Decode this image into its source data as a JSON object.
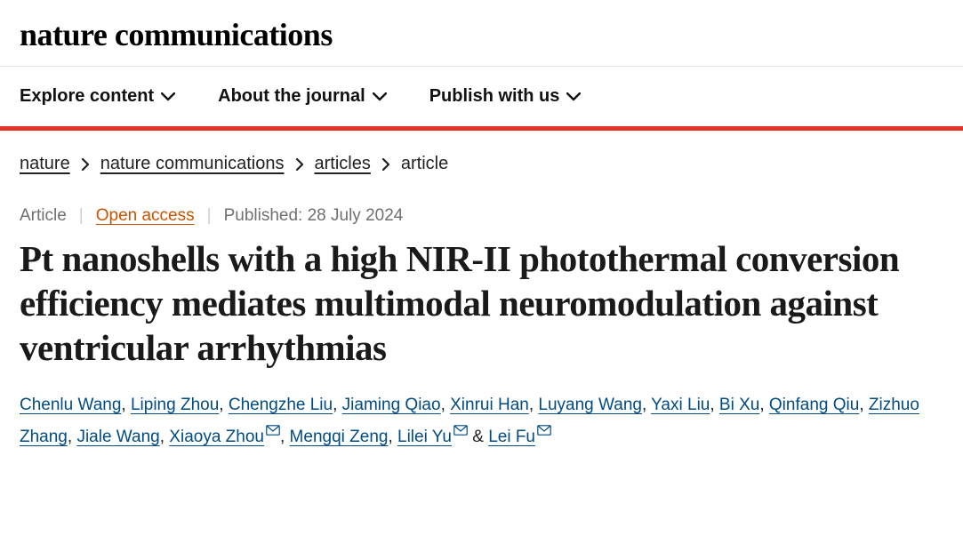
{
  "logo": "nature communications",
  "nav": {
    "items": [
      {
        "label": "Explore content"
      },
      {
        "label": "About the journal"
      },
      {
        "label": "Publish with us"
      }
    ]
  },
  "breadcrumb": {
    "items": [
      {
        "label": "nature",
        "link": true
      },
      {
        "label": "nature communications",
        "link": true
      },
      {
        "label": "articles",
        "link": true
      },
      {
        "label": "article",
        "link": false
      }
    ]
  },
  "meta": {
    "type": "Article",
    "access": "Open access",
    "published_label": "Published:",
    "published_date": "28 July 2024"
  },
  "title": "Pt nanoshells with a high NIR-II photothermal conversion efficiency mediates multimodal neuromodulation against ventricular arrhythmias",
  "authors": [
    {
      "name": "Chenlu Wang",
      "mail": false
    },
    {
      "name": "Liping Zhou",
      "mail": false
    },
    {
      "name": "Chengzhe Liu",
      "mail": false
    },
    {
      "name": "Jiaming Qiao",
      "mail": false
    },
    {
      "name": "Xinrui Han",
      "mail": false
    },
    {
      "name": "Luyang Wang",
      "mail": false
    },
    {
      "name": "Yaxi Liu",
      "mail": false
    },
    {
      "name": "Bi Xu",
      "mail": false
    },
    {
      "name": "Qinfang Qiu",
      "mail": false
    },
    {
      "name": "Zizhuo Zhang",
      "mail": false
    },
    {
      "name": "Jiale Wang",
      "mail": false
    },
    {
      "name": "Xiaoya Zhou",
      "mail": true
    },
    {
      "name": "Mengqi Zeng",
      "mail": false
    },
    {
      "name": "Lilei Yu",
      "mail": true
    },
    {
      "name": "Lei Fu",
      "mail": true
    }
  ],
  "colors": {
    "accent": "#e63329",
    "link": "#004b83",
    "open_access": "#c65302"
  }
}
